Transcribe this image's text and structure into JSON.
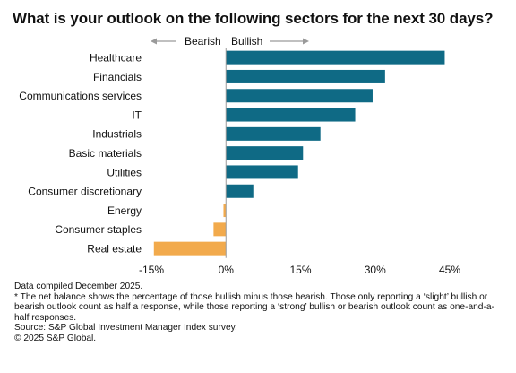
{
  "title": "What is your outlook on the following sectors for the next 30 days?",
  "direction": {
    "bearish": "Bearish",
    "bullish": "Bullish"
  },
  "notes": {
    "compiled": "Data compiled December 2025.",
    "footnote": "* The net balance shows the percentage of those bullish minus those bearish. Those only reporting a ‘slight’ bullish or bearish outlook count as half a response, while those reporting a ‘strong’ bullish or bearish outlook count as one-and-a-half responses.",
    "source": "Source: S&P Global Investment Manager Index survey.",
    "copyright": "© 2025 S&P Global."
  },
  "colors": {
    "positive": "#0f6a85",
    "negative": "#f2aa4c",
    "arrow": "#9a9a9a",
    "axis": "#999999"
  },
  "chart_data": {
    "type": "bar",
    "orientation": "horizontal",
    "categories": [
      "Healthcare",
      "Financials",
      "Communications services",
      "IT",
      "Industrials",
      "Basic materials",
      "Utilities",
      "Consumer discretionary",
      "Energy",
      "Consumer staples",
      "Real estate"
    ],
    "values": [
      44,
      32,
      29.5,
      26,
      19,
      15.5,
      14.5,
      5.5,
      -0.5,
      -2.5,
      -14.5
    ],
    "xlim": [
      -15,
      45
    ],
    "xticks": [
      -15,
      0,
      15,
      30,
      45
    ],
    "xtick_labels": [
      "-15%",
      "0%",
      "15%",
      "30%",
      "45%"
    ],
    "grid": false,
    "legend": "none"
  }
}
